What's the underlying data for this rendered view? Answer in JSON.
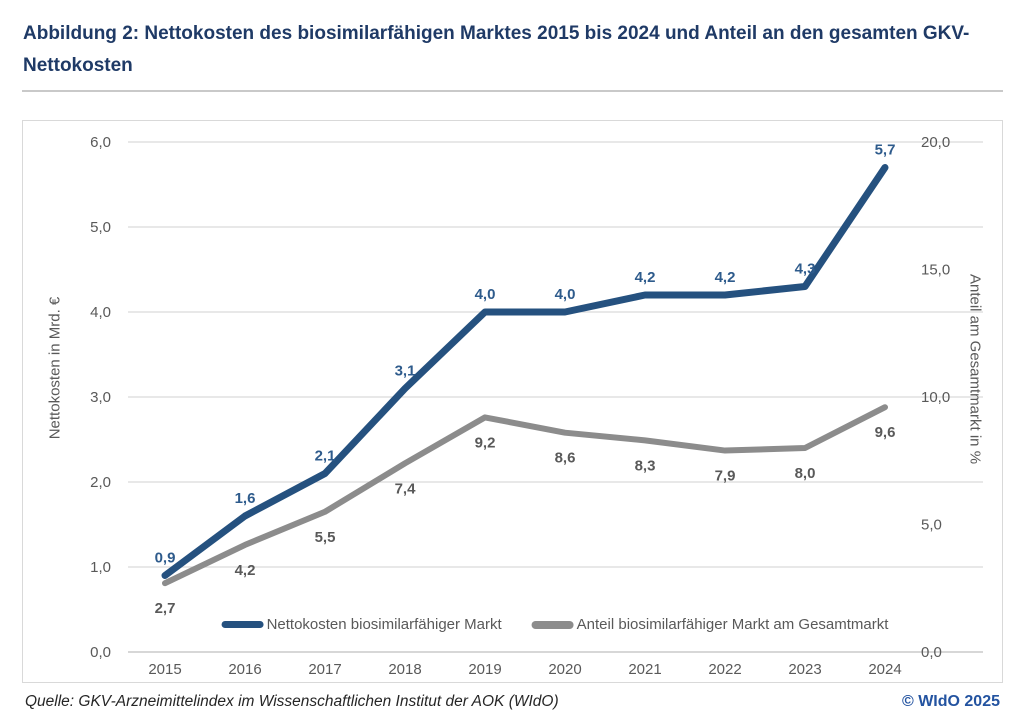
{
  "page": {
    "title": "Abbildung 2: Nettokosten des biosimilarfähigen Marktes 2015 bis 2024 und Anteil an den gesamten GKV-Nettokosten",
    "footer_source": "Quelle: GKV-Arzneimittelindex im Wissenschaftlichen Institut der AOK (WIdO)",
    "footer_copyright": "© WIdO 2025"
  },
  "colors": {
    "title_text": "#1f3a66",
    "primary_line": "#25517f",
    "primary_label": "#2e5b8c",
    "secondary_line": "#8c8c8c",
    "secondary_label": "#595959",
    "axis_text": "#595959",
    "gridline": "#d9d9d9",
    "axis_line": "#bfbfbf",
    "copyright_text": "#2353a0"
  },
  "chart_data": {
    "type": "line",
    "categories": [
      "2015",
      "2016",
      "2017",
      "2018",
      "2019",
      "2020",
      "2021",
      "2022",
      "2023",
      "2024"
    ],
    "series": [
      {
        "name": "Nettokosten biosimilarfähiger Markt",
        "axis": "left",
        "color": "#25517f",
        "values": [
          0.9,
          1.6,
          2.1,
          3.1,
          4.0,
          4.0,
          4.2,
          4.2,
          4.3,
          5.7
        ],
        "data_labels": [
          "0,9",
          "1,6",
          "2,1",
          "3,1",
          "4,0",
          "4,0",
          "4,2",
          "4,2",
          "4,3",
          "5,7"
        ]
      },
      {
        "name": "Anteil biosimilarfähiger Markt am Gesamtmarkt",
        "axis": "right",
        "color": "#8c8c8c",
        "values": [
          2.7,
          4.2,
          5.5,
          7.4,
          9.2,
          8.6,
          8.3,
          7.9,
          8.0,
          9.6
        ],
        "data_labels": [
          "2,7",
          "4,2",
          "5,5",
          "7,4",
          "9,2",
          "8,6",
          "8,3",
          "7,9",
          "8,0",
          "9,6"
        ]
      }
    ],
    "left_axis": {
      "label": "Nettokosten in Mrd. €",
      "min": 0,
      "max": 6,
      "step": 1,
      "tick_labels": [
        "0,0",
        "1,0",
        "2,0",
        "3,0",
        "4,0",
        "5,0",
        "6,0"
      ]
    },
    "right_axis": {
      "label": "Anteil am Gesamtmarkt in %",
      "min": 0,
      "max": 20,
      "step": 5,
      "tick_labels": [
        "0,0",
        "5,0",
        "10,0",
        "15,0",
        "20,0"
      ]
    },
    "grid": "horizontal",
    "legend_position": "bottom-inside"
  }
}
